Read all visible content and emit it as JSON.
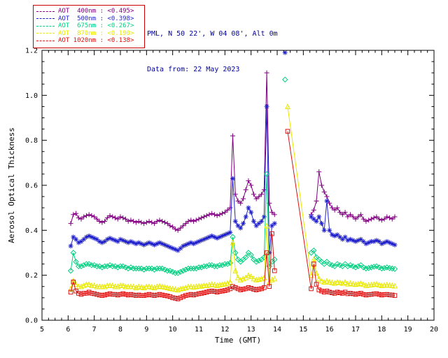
{
  "header": {
    "line1": "PML, N 50 22', W 04 08', Alt 0m",
    "line2": "Data from: 22 May 2023",
    "color": "#000099"
  },
  "legend": {
    "border_color": "#cc0000",
    "position": "top-left"
  },
  "chart_data": {
    "type": "line",
    "title": "",
    "xlabel": "Time (GMT)",
    "ylabel": "Aerosol Optical Thickness",
    "xlim": [
      5,
      20
    ],
    "ylim": [
      0,
      1.2
    ],
    "grid": false,
    "xticks": [
      5,
      6,
      7,
      8,
      9,
      10,
      11,
      12,
      13,
      14,
      15,
      16,
      17,
      18,
      19,
      20
    ],
    "xtick_labels": [
      "5",
      "6",
      "7",
      "8",
      "9",
      "10",
      "11",
      "12",
      "13",
      "14",
      "15",
      "16",
      "17",
      "18",
      "19",
      "20"
    ],
    "yticks": [
      0.0,
      0.2,
      0.4,
      0.6,
      0.8,
      1.0,
      1.2
    ],
    "ytick_labels": [
      "0.0",
      "0.2",
      "0.4",
      "0.6",
      "0.8",
      "1.0",
      "1.2"
    ],
    "x_minor_step": 0.25,
    "y_minor_step": 0.05,
    "t": [
      6.1,
      6.2,
      6.3,
      6.4,
      6.5,
      6.6,
      6.7,
      6.8,
      6.9,
      7.0,
      7.1,
      7.2,
      7.3,
      7.4,
      7.5,
      7.6,
      7.7,
      7.8,
      7.9,
      8.0,
      8.1,
      8.2,
      8.3,
      8.4,
      8.5,
      8.6,
      8.7,
      8.8,
      8.9,
      9.0,
      9.1,
      9.2,
      9.3,
      9.4,
      9.5,
      9.6,
      9.7,
      9.8,
      9.9,
      10.0,
      10.1,
      10.2,
      10.3,
      10.4,
      10.5,
      10.6,
      10.7,
      10.8,
      10.9,
      11.0,
      11.1,
      11.2,
      11.3,
      11.4,
      11.5,
      11.6,
      11.7,
      11.8,
      11.9,
      12.0,
      12.1,
      12.2,
      12.3,
      12.4,
      12.5,
      12.6,
      12.7,
      12.8,
      12.9,
      13.0,
      13.1,
      13.2,
      13.3,
      13.4,
      13.5,
      13.6,
      13.7,
      13.8,
      13.9,
      14.0,
      14.1,
      14.2,
      14.3,
      14.4,
      15.3,
      15.4,
      15.5,
      15.6,
      15.7,
      15.8,
      15.9,
      16.0,
      16.1,
      16.2,
      16.3,
      16.4,
      16.5,
      16.6,
      16.7,
      16.8,
      16.9,
      17.0,
      17.1,
      17.2,
      17.3,
      17.4,
      17.5,
      17.6,
      17.7,
      17.8,
      17.9,
      18.0,
      18.1,
      18.2,
      18.3,
      18.4,
      18.5
    ],
    "series": [
      {
        "key": "400nm",
        "name": "AOT 400nm",
        "legend_label": "AOT  400nm : <0.495>",
        "mean": 0.495,
        "color": "#800080",
        "marker": "plus",
        "values": [
          0.43,
          0.47,
          0.475,
          0.455,
          0.45,
          0.46,
          0.465,
          0.47,
          0.465,
          0.46,
          0.45,
          0.44,
          0.435,
          0.44,
          0.455,
          0.465,
          0.46,
          0.455,
          0.45,
          0.46,
          0.455,
          0.45,
          0.44,
          0.445,
          0.44,
          0.435,
          0.44,
          0.435,
          0.43,
          0.435,
          0.44,
          0.435,
          0.43,
          0.44,
          0.445,
          0.44,
          0.435,
          0.43,
          0.42,
          0.415,
          0.405,
          0.4,
          0.41,
          0.42,
          0.43,
          0.44,
          0.445,
          0.44,
          0.445,
          0.45,
          0.455,
          0.46,
          0.465,
          0.47,
          0.475,
          0.47,
          0.465,
          0.47,
          0.475,
          0.48,
          0.49,
          0.5,
          0.82,
          0.56,
          0.53,
          0.52,
          0.54,
          0.58,
          0.62,
          0.6,
          0.56,
          0.54,
          0.55,
          0.56,
          0.58,
          1.1,
          0.52,
          0.48,
          0.47,
          null,
          null,
          null,
          null,
          null,
          0.47,
          0.49,
          0.53,
          0.66,
          0.6,
          0.57,
          0.55,
          0.52,
          0.5,
          0.49,
          0.5,
          0.48,
          0.47,
          0.48,
          0.46,
          0.47,
          0.46,
          0.45,
          0.46,
          0.47,
          0.45,
          0.44,
          0.445,
          0.45,
          0.455,
          0.46,
          0.45,
          0.445,
          0.45,
          0.46,
          0.455,
          0.45,
          0.46
        ]
      },
      {
        "key": "500nm",
        "name": "AOT 500nm",
        "legend_label": "AOT  500nm : <0.398>",
        "mean": 0.398,
        "color": "#2222cc",
        "marker": "asterisk",
        "values": [
          0.33,
          0.37,
          0.36,
          0.345,
          0.35,
          0.36,
          0.37,
          0.375,
          0.37,
          0.365,
          0.36,
          0.35,
          0.345,
          0.35,
          0.36,
          0.365,
          0.36,
          0.355,
          0.35,
          0.36,
          0.355,
          0.35,
          0.345,
          0.35,
          0.345,
          0.34,
          0.345,
          0.34,
          0.335,
          0.34,
          0.345,
          0.34,
          0.335,
          0.34,
          0.345,
          0.34,
          0.335,
          0.33,
          0.325,
          0.32,
          0.315,
          0.31,
          0.32,
          0.33,
          0.335,
          0.34,
          0.345,
          0.34,
          0.345,
          0.35,
          0.355,
          0.36,
          0.365,
          0.37,
          0.375,
          0.37,
          0.365,
          0.37,
          0.375,
          0.38,
          0.385,
          0.39,
          0.63,
          0.44,
          0.42,
          0.41,
          0.43,
          0.46,
          0.5,
          0.48,
          0.44,
          0.42,
          0.43,
          0.44,
          0.46,
          0.95,
          0.3,
          0.42,
          0.43,
          null,
          null,
          null,
          1.19,
          null,
          0.46,
          0.45,
          0.44,
          0.46,
          0.43,
          0.4,
          0.53,
          0.4,
          0.38,
          0.375,
          0.38,
          0.37,
          0.36,
          0.37,
          0.355,
          0.36,
          0.355,
          0.35,
          0.355,
          0.36,
          0.35,
          0.34,
          0.345,
          0.35,
          0.35,
          0.355,
          0.35,
          0.34,
          0.345,
          0.35,
          0.345,
          0.34,
          0.335
        ]
      },
      {
        "key": "675nm",
        "name": "AOT 675nm",
        "legend_label": "AOT  675nm : <0.267>",
        "mean": 0.267,
        "color": "#00d080",
        "marker": "diamond",
        "values": [
          0.22,
          0.3,
          0.26,
          0.24,
          0.24,
          0.245,
          0.25,
          0.25,
          0.245,
          0.245,
          0.24,
          0.24,
          0.235,
          0.24,
          0.24,
          0.245,
          0.24,
          0.24,
          0.235,
          0.24,
          0.24,
          0.235,
          0.23,
          0.235,
          0.23,
          0.23,
          0.23,
          0.23,
          0.225,
          0.23,
          0.23,
          0.23,
          0.225,
          0.23,
          0.23,
          0.23,
          0.225,
          0.22,
          0.22,
          0.215,
          0.21,
          0.21,
          0.215,
          0.22,
          0.225,
          0.23,
          0.23,
          0.23,
          0.23,
          0.235,
          0.235,
          0.24,
          0.24,
          0.245,
          0.245,
          0.24,
          0.24,
          0.245,
          0.245,
          0.25,
          0.25,
          0.255,
          0.37,
          0.3,
          0.27,
          0.26,
          0.27,
          0.28,
          0.3,
          0.29,
          0.27,
          0.26,
          0.265,
          0.27,
          0.28,
          0.65,
          0.24,
          0.26,
          0.27,
          null,
          null,
          null,
          1.07,
          null,
          0.3,
          0.31,
          0.28,
          0.27,
          0.26,
          0.25,
          0.26,
          0.25,
          0.245,
          0.24,
          0.25,
          0.245,
          0.24,
          0.25,
          0.24,
          0.245,
          0.24,
          0.235,
          0.24,
          0.245,
          0.235,
          0.23,
          0.232,
          0.235,
          0.238,
          0.24,
          0.235,
          0.23,
          0.232,
          0.235,
          0.232,
          0.23,
          0.228
        ]
      },
      {
        "key": "870nm",
        "name": "AOT 870nm",
        "legend_label": "AOT  870nm : <0.190>",
        "mean": 0.19,
        "color": "#e8e800",
        "marker": "triangle",
        "values": [
          0.14,
          0.175,
          0.16,
          0.15,
          0.15,
          0.155,
          0.16,
          0.16,
          0.155,
          0.155,
          0.15,
          0.15,
          0.15,
          0.15,
          0.155,
          0.155,
          0.155,
          0.15,
          0.15,
          0.155,
          0.155,
          0.15,
          0.15,
          0.15,
          0.15,
          0.145,
          0.15,
          0.148,
          0.145,
          0.15,
          0.15,
          0.148,
          0.145,
          0.15,
          0.152,
          0.15,
          0.148,
          0.145,
          0.142,
          0.14,
          0.138,
          0.135,
          0.14,
          0.142,
          0.145,
          0.15,
          0.15,
          0.148,
          0.15,
          0.152,
          0.152,
          0.155,
          0.155,
          0.158,
          0.16,
          0.158,
          0.155,
          0.158,
          0.16,
          0.162,
          0.165,
          0.17,
          0.345,
          0.22,
          0.19,
          0.18,
          0.185,
          0.19,
          0.2,
          0.195,
          0.185,
          0.18,
          0.182,
          0.185,
          0.19,
          0.42,
          0.17,
          0.18,
          0.185,
          null,
          null,
          null,
          null,
          0.95,
          0.2,
          0.27,
          0.21,
          0.185,
          0.175,
          0.17,
          0.175,
          0.17,
          0.168,
          0.165,
          0.17,
          0.168,
          0.165,
          0.17,
          0.162,
          0.165,
          0.162,
          0.16,
          0.162,
          0.165,
          0.16,
          0.155,
          0.157,
          0.158,
          0.16,
          0.162,
          0.158,
          0.155,
          0.156,
          0.158,
          0.156,
          0.155,
          0.153
        ]
      },
      {
        "key": "1020nm",
        "name": "AOT 1020nm",
        "legend_label": "AOT 1020nm : <0.138>",
        "mean": 0.138,
        "color": "#dd1111",
        "marker": "square",
        "values": [
          0.125,
          0.17,
          0.13,
          0.12,
          0.115,
          0.12,
          0.12,
          0.125,
          0.12,
          0.118,
          0.115,
          0.112,
          0.11,
          0.112,
          0.115,
          0.118,
          0.115,
          0.115,
          0.112,
          0.115,
          0.118,
          0.115,
          0.112,
          0.115,
          0.112,
          0.11,
          0.112,
          0.11,
          0.11,
          0.112,
          0.115,
          0.112,
          0.11,
          0.112,
          0.115,
          0.112,
          0.11,
          0.108,
          0.105,
          0.1,
          0.098,
          0.095,
          0.1,
          0.105,
          0.11,
          0.112,
          0.115,
          0.112,
          0.115,
          0.118,
          0.12,
          0.122,
          0.125,
          0.128,
          0.13,
          0.128,
          0.125,
          0.128,
          0.13,
          0.132,
          0.135,
          0.14,
          0.15,
          0.145,
          0.14,
          0.135,
          0.138,
          0.14,
          0.145,
          0.142,
          0.138,
          0.135,
          0.138,
          0.14,
          0.145,
          0.3,
          0.15,
          0.385,
          0.22,
          null,
          null,
          null,
          null,
          0.84,
          0.14,
          0.25,
          0.16,
          0.135,
          0.13,
          0.125,
          0.13,
          0.125,
          0.122,
          0.12,
          0.125,
          0.122,
          0.12,
          0.125,
          0.118,
          0.12,
          0.118,
          0.115,
          0.118,
          0.12,
          0.115,
          0.112,
          0.114,
          0.115,
          0.117,
          0.118,
          0.115,
          0.112,
          0.114,
          0.115,
          0.113,
          0.112,
          0.11
        ]
      }
    ]
  }
}
